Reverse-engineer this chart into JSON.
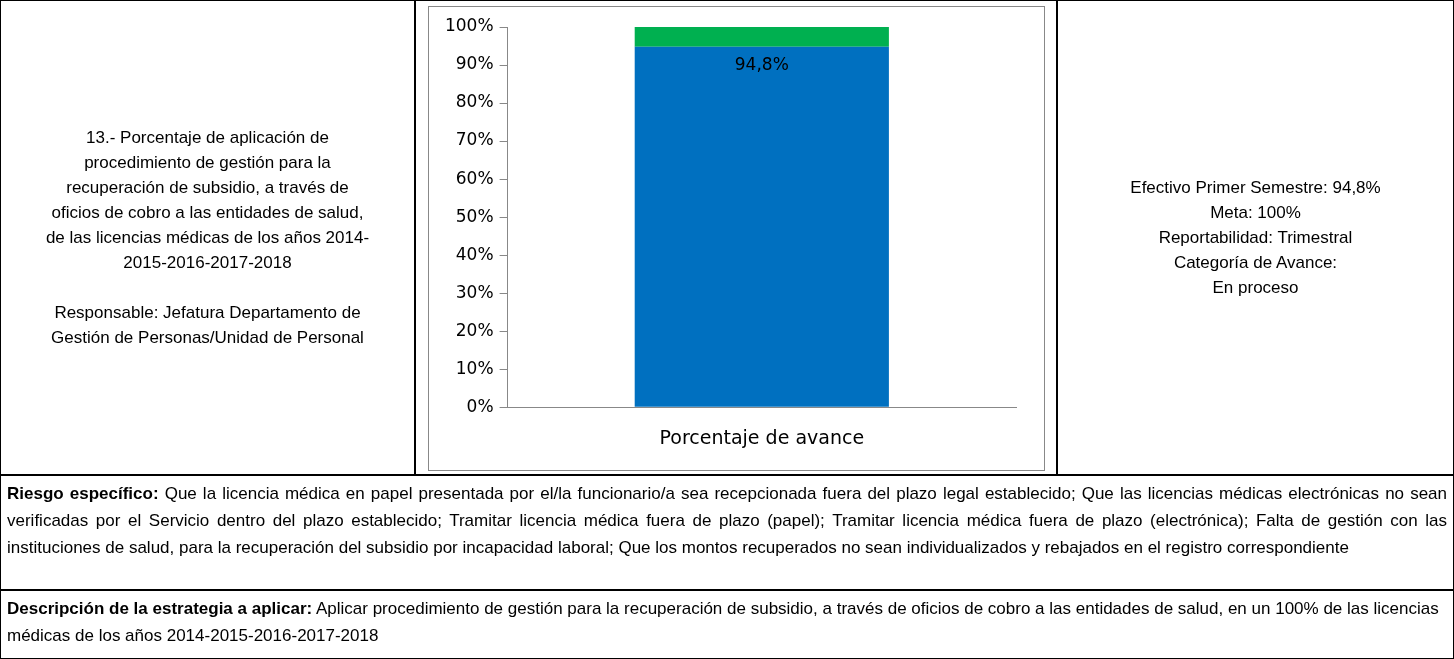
{
  "chart_data": {
    "type": "bar",
    "stacked": true,
    "categories": [
      "Porcentaje de avance"
    ],
    "series": [
      {
        "color": "#0070c0",
        "values": [
          94.8
        ],
        "value_labels": [
          "94,8%"
        ]
      },
      {
        "color": "#00b050",
        "values": [
          5.2
        ]
      }
    ],
    "ylim": [
      0,
      100
    ],
    "yticks": [
      {
        "value": 0,
        "label": "0%"
      },
      {
        "value": 10,
        "label": "10%"
      },
      {
        "value": 20,
        "label": "20%"
      },
      {
        "value": 30,
        "label": "30%"
      },
      {
        "value": 40,
        "label": "40%"
      },
      {
        "value": 50,
        "label": "50%"
      },
      {
        "value": 60,
        "label": "60%"
      },
      {
        "value": 70,
        "label": "70%"
      },
      {
        "value": 80,
        "label": "80%"
      },
      {
        "value": 90,
        "label": "90%"
      },
      {
        "value": 100,
        "label": "100%"
      }
    ],
    "grid": false,
    "legend": false,
    "annotations": [
      "13.- Porcentaje de aplicación de procedimiento de gestión para la recuperación de subsidio, a través de oficios de cobro a las entidades de salud, de las licencias médicas de los años 2014-2015-2016-2017-2018",
      "Responsable: Jefatura Departamento de Gestión de Personas/Unidad de Personal",
      "Efectivo Primer Semestre: 94,8%\nMeta: 100%\nReportabilidad: Trimestral\nCategoría de Avance:\nEn proceso",
      "Riesgo específico: Que la licencia médica en papel presentada por el/la funcionario/a sea recepcionada fuera del plazo legal establecido; Que las licencias médicas electrónicas no sean verificadas por el Servicio dentro del plazo establecido; Tramitar licencia médica fuera de plazo (papel); Tramitar licencia médica fuera de plazo (electrónica); Falta de gestión con las instituciones de salud, para la recuperación del subsidio por incapacidad laboral; Que los montos recuperados no sean individualizados y rebajados en el registro correspondiente",
      "Descripción de la estrategia a aplicar: Aplicar procedimiento de gestión para la recuperación de subsidio, a través de oficios de cobro a las entidades de salud, en un 100% de las licencias médicas de los años 2014-2015-2016-2017-2018"
    ]
  }
}
